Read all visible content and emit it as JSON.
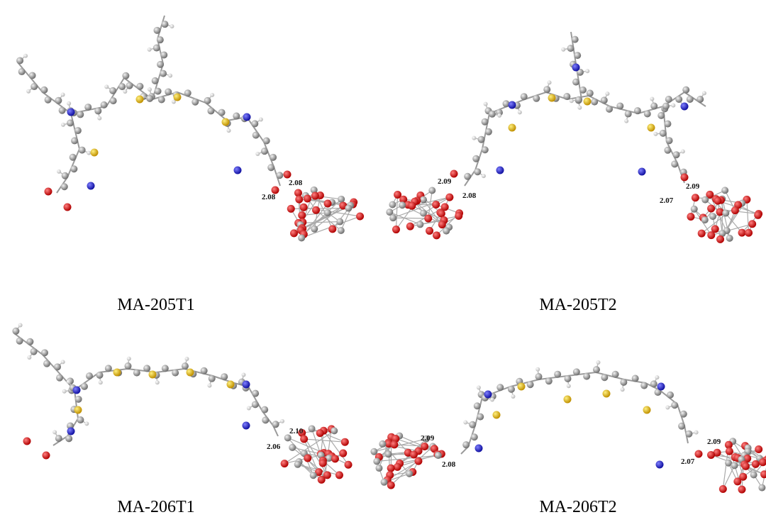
{
  "panels": [
    {
      "label": "MA-205T1",
      "bond_lengths": [
        "2.08",
        "2.08"
      ]
    },
    {
      "label": "MA-205T2",
      "bond_lengths": [
        "2.09",
        "2.08",
        "2.09",
        "2.07"
      ]
    },
    {
      "label": "MA-206T1",
      "bond_lengths": [
        "2.10",
        "2.06"
      ]
    },
    {
      "label": "MA-206T2",
      "bond_lengths": [
        "2.09",
        "2.08",
        "2.09",
        "2.07"
      ]
    }
  ]
}
